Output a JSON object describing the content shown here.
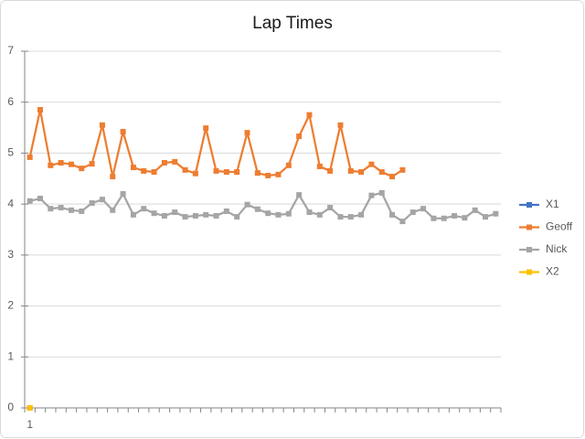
{
  "chart_data": {
    "type": "line",
    "title": "Lap Times",
    "categories": [
      "1",
      null,
      null,
      null,
      null,
      null,
      null,
      null,
      null,
      null,
      null,
      null,
      null,
      null,
      null,
      null,
      null,
      null,
      null,
      null,
      null,
      null,
      null,
      null,
      null,
      null,
      null,
      null,
      null,
      null,
      null,
      null,
      null,
      null,
      null,
      null,
      null,
      null,
      null,
      null,
      null,
      null,
      null,
      null,
      null,
      null
    ],
    "series": [
      {
        "name": "X1",
        "color": "#4472c4",
        "values": [
          0,
          null,
          null,
          null,
          null,
          null,
          null,
          null,
          null,
          null,
          null,
          null,
          null,
          null,
          null,
          null,
          null,
          null,
          null,
          null,
          null,
          null,
          null,
          null,
          null,
          null,
          null,
          null,
          null,
          null,
          null,
          null,
          null,
          null,
          null,
          null,
          null,
          null,
          null,
          null,
          null,
          null,
          null,
          null,
          null,
          null
        ]
      },
      {
        "name": "Geoff",
        "color": "#ed7d31",
        "values": [
          4.92,
          5.85,
          4.76,
          4.81,
          4.78,
          4.7,
          4.79,
          5.55,
          4.54,
          5.42,
          4.72,
          4.65,
          4.63,
          4.81,
          4.83,
          4.67,
          4.6,
          5.49,
          4.65,
          4.63,
          4.63,
          5.4,
          4.61,
          4.56,
          4.58,
          4.76,
          5.33,
          5.75,
          4.74,
          4.65,
          5.55,
          4.65,
          4.63,
          4.78,
          4.63,
          4.54,
          4.67,
          null,
          null,
          null,
          null,
          null,
          null,
          null,
          null,
          null
        ]
      },
      {
        "name": "Nick",
        "color": "#a5a5a5",
        "values": [
          4.06,
          4.11,
          3.91,
          3.93,
          3.88,
          3.86,
          4.02,
          4.09,
          3.88,
          4.2,
          3.79,
          3.91,
          3.82,
          3.77,
          3.84,
          3.75,
          3.77,
          3.79,
          3.77,
          3.86,
          3.75,
          3.99,
          3.9,
          3.82,
          3.79,
          3.81,
          4.18,
          3.84,
          3.79,
          3.93,
          3.75,
          3.75,
          3.79,
          4.17,
          4.22,
          3.79,
          3.66,
          3.84,
          3.91,
          3.72,
          3.72,
          3.77,
          3.73,
          3.88,
          3.75,
          3.81
        ]
      },
      {
        "name": "X2",
        "color": "#ffc000",
        "values": [
          0,
          null,
          null,
          null,
          null,
          null,
          null,
          null,
          null,
          null,
          null,
          null,
          null,
          null,
          null,
          null,
          null,
          null,
          null,
          null,
          null,
          null,
          null,
          null,
          null,
          null,
          null,
          null,
          null,
          null,
          null,
          null,
          null,
          null,
          null,
          null,
          null,
          null,
          null,
          null,
          null,
          null,
          null,
          null,
          null,
          null
        ]
      }
    ],
    "ylim": [
      0,
      7
    ],
    "yticks": [
      0,
      1,
      2,
      3,
      4,
      5,
      6,
      7
    ],
    "grid": true,
    "legend": "right"
  }
}
